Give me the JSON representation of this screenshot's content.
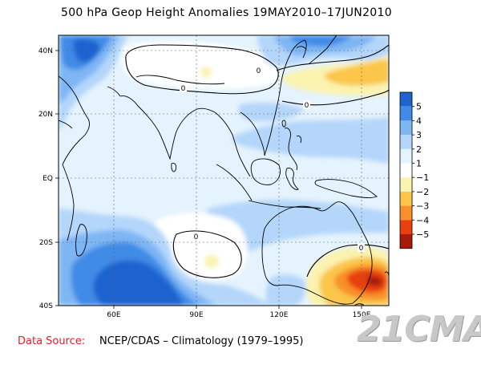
{
  "title": "500 hPa Geop Height Anomalies 19MAY2010–17JUN2010",
  "footer": {
    "label": "Data Source:",
    "value": "NCEP/CDAS – Climatology (1979–1995)"
  },
  "watermark": "21CMA",
  "map": {
    "lon_range": [
      40,
      160
    ],
    "lat_range": [
      -40,
      45
    ],
    "lat_ticks": [
      {
        "value": 40,
        "label": "40N"
      },
      {
        "value": 20,
        "label": "20N"
      },
      {
        "value": 0,
        "label": "EQ"
      },
      {
        "value": -20,
        "label": "20S"
      },
      {
        "value": -40,
        "label": "40S"
      }
    ],
    "lon_ticks": [
      {
        "value": 60,
        "label": "60E"
      },
      {
        "value": 90,
        "label": "90E"
      },
      {
        "value": 120,
        "label": "120E"
      },
      {
        "value": 150,
        "label": "150E"
      }
    ],
    "contour_labels": [
      {
        "text": "0",
        "lon": 84,
        "lat": 29
      },
      {
        "text": "0",
        "lon": 123,
        "lat": 35
      },
      {
        "text": "0",
        "lon": 130,
        "lat": 24
      },
      {
        "text": "0",
        "lon": 88,
        "lat": -19
      },
      {
        "text": "0",
        "lon": 151,
        "lat": -21
      }
    ],
    "colors": {
      "a5": "#1d64cf",
      "a4": "#3f8be6",
      "a3": "#7eb6f4",
      "a2": "#b4d6fa",
      "a1": "#e4f3fd",
      "zero": "#ffffff",
      "n1": "#fbf3b0",
      "n2": "#fbc64a",
      "n3": "#f8902b",
      "n4": "#e8400f",
      "n5": "#a81b08",
      "land": "#000000"
    }
  },
  "colorbar": {
    "labels": [
      "5",
      "4",
      "3",
      "2",
      "1",
      "−1",
      "−2",
      "−3",
      "−4",
      "−5"
    ],
    "colors": [
      "#1d64cf",
      "#3f8be6",
      "#7eb6f4",
      "#b4d6fa",
      "#e4f3fd",
      "#ffffff",
      "#fbf3b0",
      "#fbc64a",
      "#f8902b",
      "#e8400f",
      "#a81b08"
    ]
  }
}
